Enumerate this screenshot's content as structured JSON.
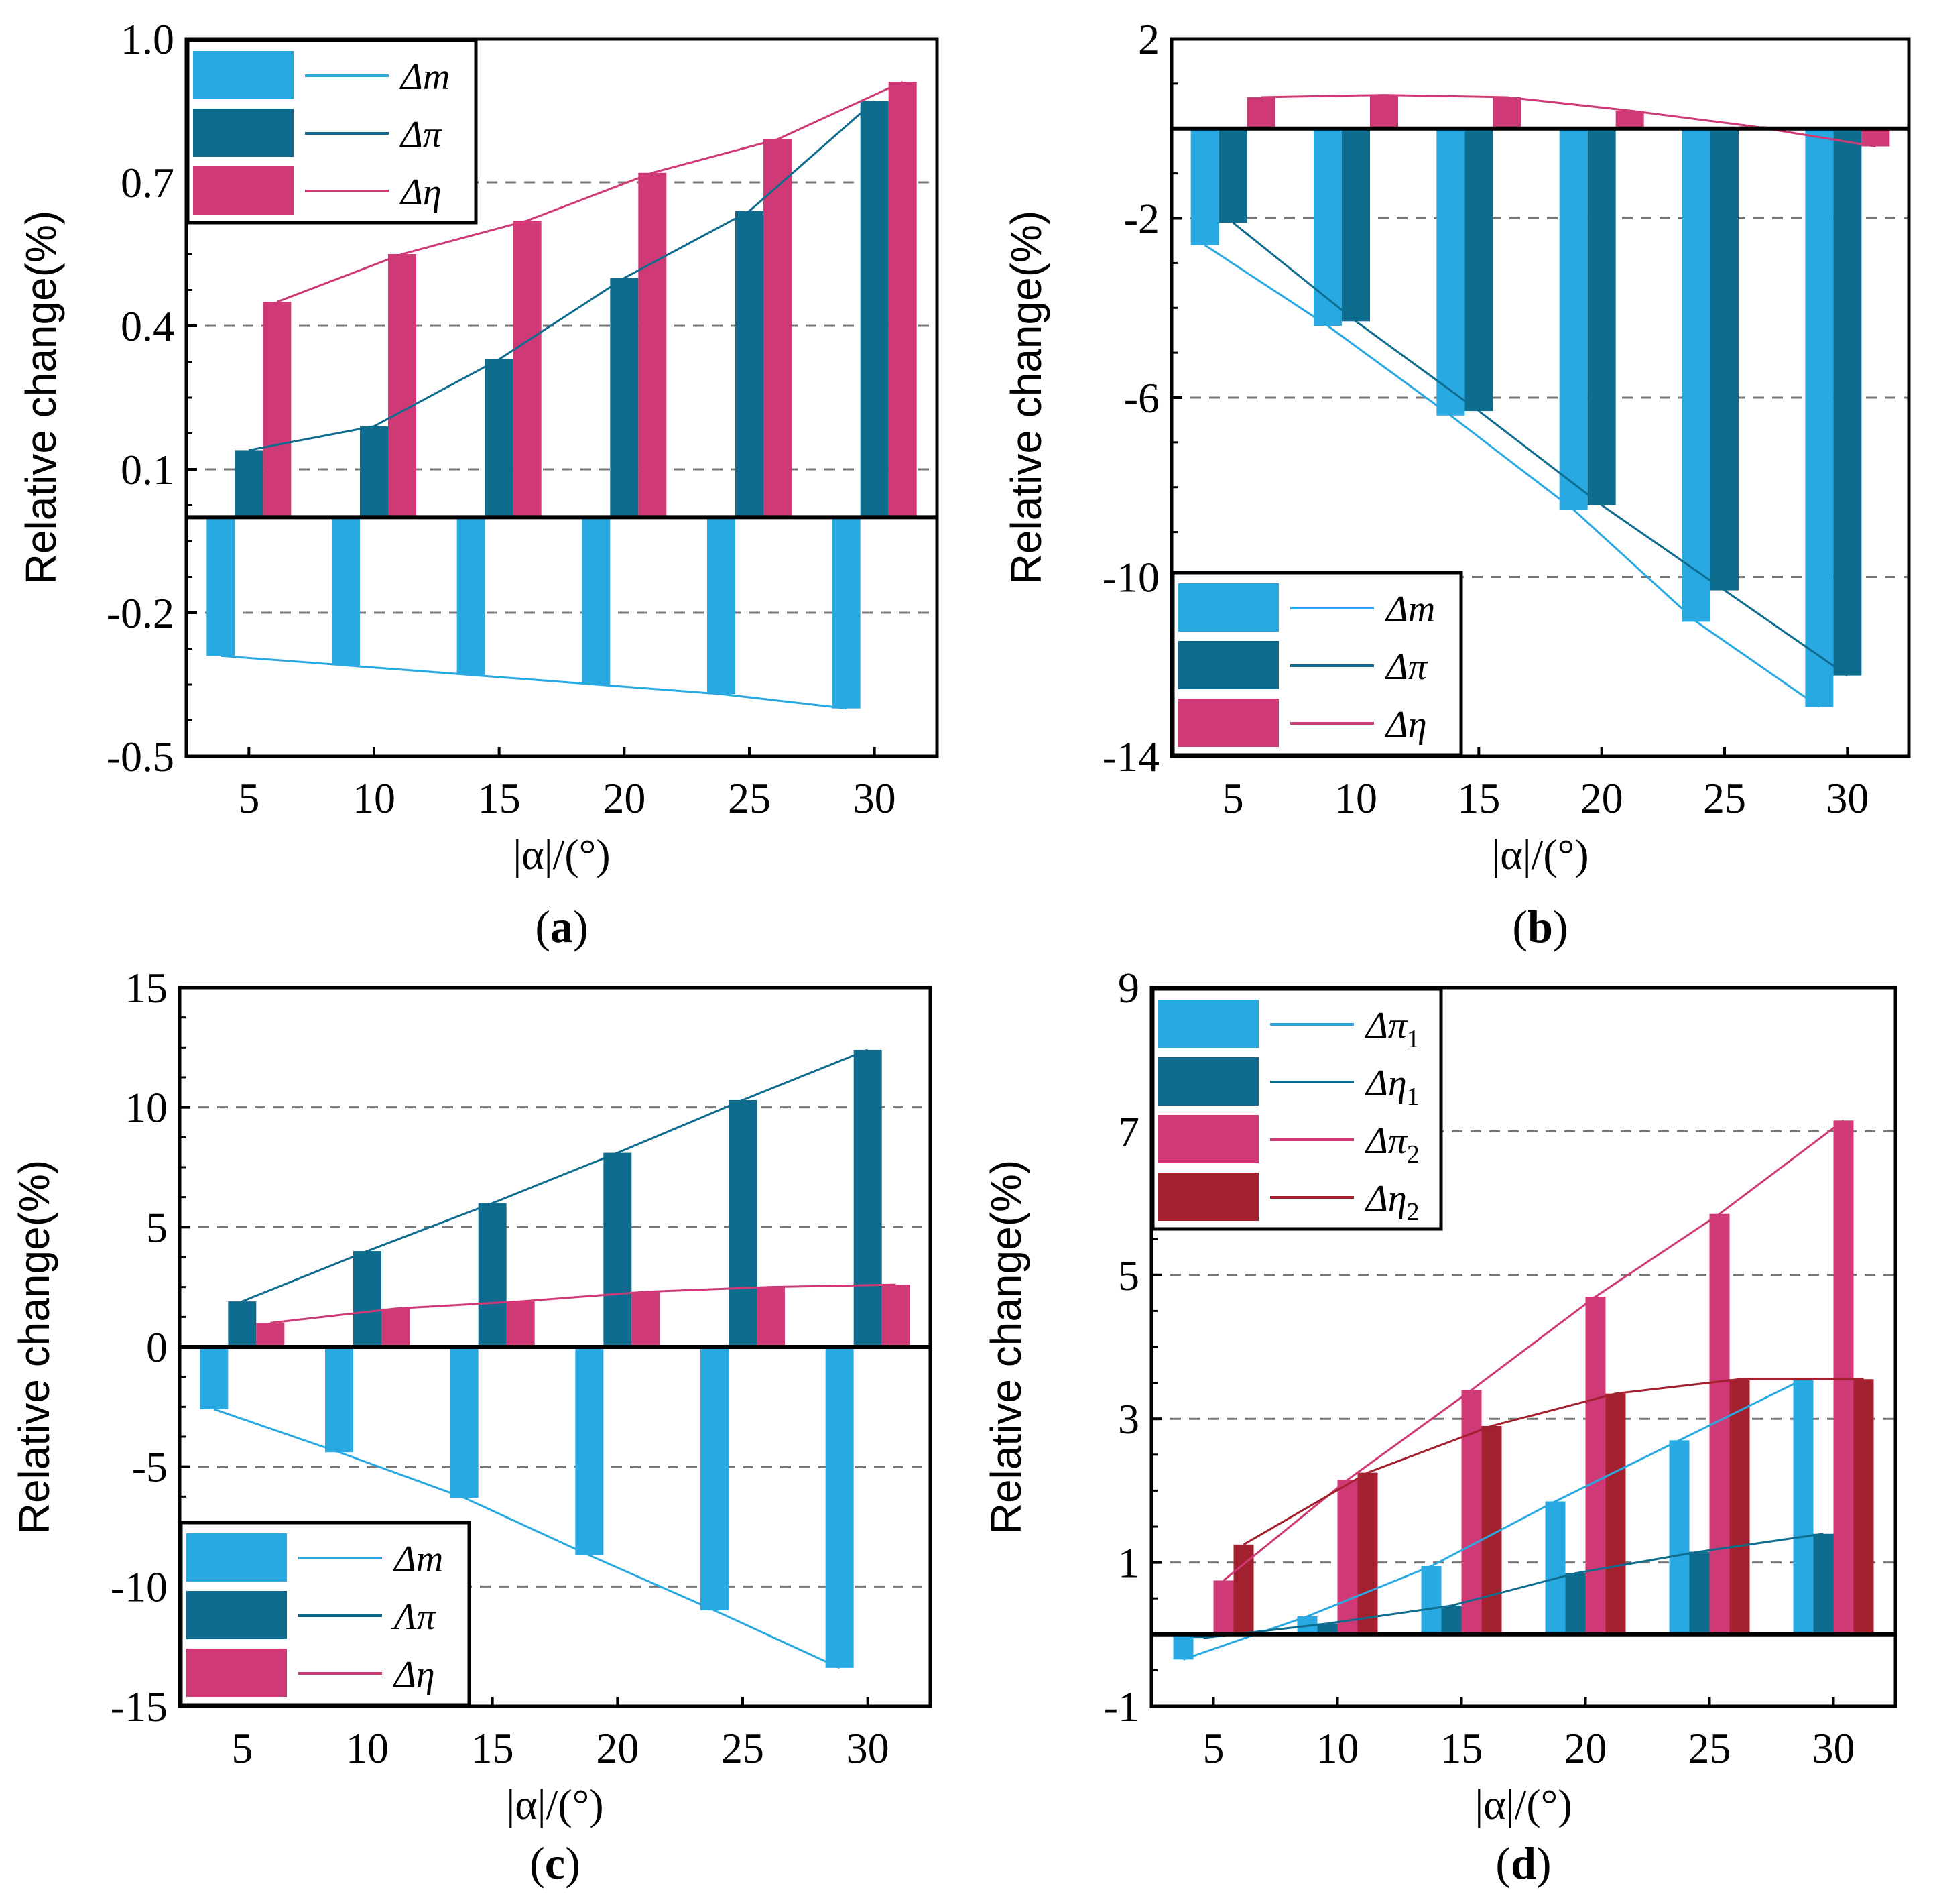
{
  "colors": {
    "light_blue": "#29a9e1",
    "teal": "#0e6c8f",
    "pink": "#cf3a76",
    "dark_red": "#a3202e"
  },
  "chart_data": [
    {
      "panel": "a",
      "type": "bar",
      "panel_label": "a",
      "xlabel": "|α|/(°)",
      "ylabel": "Relative change(%)",
      "categories": [
        "5",
        "10",
        "15",
        "20",
        "25",
        "30"
      ],
      "ylim": [
        -0.5,
        1.0
      ],
      "yticks": [
        "1.0",
        "0.7",
        "0.4",
        "0.1",
        "-0.2",
        "-0.5"
      ],
      "ytick_values": [
        1.0,
        0.7,
        0.4,
        0.1,
        -0.2,
        -0.5
      ],
      "grid_values": [
        0.7,
        0.4,
        0.1,
        -0.2
      ],
      "legend_position": "top-left",
      "series": [
        {
          "name": "Δm",
          "label_base": "Δm",
          "sub": "",
          "color": "light_blue",
          "values": [
            -0.29,
            -0.31,
            -0.33,
            -0.35,
            -0.37,
            -0.4
          ]
        },
        {
          "name": "Δπ",
          "label_base": "Δπ",
          "sub": "",
          "color": "teal",
          "values": [
            0.14,
            0.19,
            0.33,
            0.5,
            0.64,
            0.87
          ]
        },
        {
          "name": "Δη",
          "label_base": "Δη",
          "sub": "",
          "color": "pink",
          "values": [
            0.45,
            0.55,
            0.62,
            0.72,
            0.79,
            0.91
          ]
        }
      ]
    },
    {
      "panel": "b",
      "type": "bar",
      "panel_label": "b",
      "xlabel": "|α|/(°)",
      "ylabel": "Relative change(%)",
      "categories": [
        "5",
        "10",
        "15",
        "20",
        "25",
        "30"
      ],
      "ylim": [
        -14,
        2
      ],
      "yticks": [
        "2",
        "-2",
        "-6",
        "-10",
        "-14"
      ],
      "ytick_values": [
        2,
        -2,
        -6,
        -10,
        -14
      ],
      "grid_values": [
        -2,
        -6,
        -10
      ],
      "legend_position": "bottom-left",
      "series": [
        {
          "name": "Δm",
          "label_base": "Δm",
          "sub": "",
          "color": "light_blue",
          "values": [
            -2.6,
            -4.4,
            -6.4,
            -8.5,
            -11.0,
            -12.9
          ]
        },
        {
          "name": "Δπ",
          "label_base": "Δπ",
          "sub": "",
          "color": "teal",
          "values": [
            -2.1,
            -4.3,
            -6.3,
            -8.4,
            -10.3,
            -12.2
          ]
        },
        {
          "name": "Δη",
          "label_base": "Δη",
          "sub": "",
          "color": "pink",
          "values": [
            0.7,
            0.75,
            0.7,
            0.4,
            0.05,
            -0.4
          ]
        }
      ]
    },
    {
      "panel": "c",
      "type": "bar",
      "panel_label": "c",
      "xlabel": "|α|/(°)",
      "ylabel": "Relative change(%)",
      "categories": [
        "5",
        "10",
        "15",
        "20",
        "25",
        "30"
      ],
      "ylim": [
        -15,
        15
      ],
      "yticks": [
        "15",
        "10",
        "5",
        "0",
        "-5",
        "-10",
        "-15"
      ],
      "ytick_values": [
        15,
        10,
        5,
        0,
        -5,
        -10,
        -15
      ],
      "grid_values": [
        10,
        5,
        -5,
        -10
      ],
      "legend_position": "bottom-left",
      "series": [
        {
          "name": "Δm",
          "label_base": "Δm",
          "sub": "",
          "color": "light_blue",
          "values": [
            -2.6,
            -4.4,
            -6.3,
            -8.7,
            -11.0,
            -13.4
          ]
        },
        {
          "name": "Λπ",
          "label_base": "Λπ",
          "sub": "",
          "color": "teal",
          "values": [
            1.9,
            4.0,
            6.0,
            8.1,
            10.3,
            12.4
          ]
        },
        {
          "name": "Δη",
          "label_base": "Δη",
          "sub": "",
          "color": "pink",
          "values": [
            1.0,
            1.6,
            1.9,
            2.3,
            2.5,
            2.6
          ]
        }
      ]
    },
    {
      "panel": "d",
      "type": "bar",
      "panel_label": "d",
      "xlabel": "|α|/(°)",
      "ylabel": "Relative change(%)",
      "categories": [
        "5",
        "10",
        "15",
        "20",
        "25",
        "30"
      ],
      "ylim": [
        -1,
        9
      ],
      "yticks": [
        "9",
        "7",
        "5",
        "3",
        "1",
        "-1"
      ],
      "ytick_values": [
        9,
        7,
        5,
        3,
        1,
        -1
      ],
      "grid_values": [
        7,
        5,
        3,
        1
      ],
      "legend_position": "top-left",
      "series": [
        {
          "name": "Δπ1",
          "label_base": "Δπ",
          "sub": "1",
          "color": "light_blue",
          "values": [
            -0.35,
            0.25,
            0.95,
            1.85,
            2.7,
            3.55
          ]
        },
        {
          "name": "Δη1",
          "label_base": "Δη",
          "sub": "1",
          "color": "teal",
          "values": [
            -0.05,
            0.15,
            0.4,
            0.85,
            1.15,
            1.4
          ]
        },
        {
          "name": "Δπ2",
          "label_base": "Δπ",
          "sub": "2",
          "color": "pink",
          "values": [
            0.75,
            2.15,
            3.4,
            4.7,
            5.85,
            7.15
          ]
        },
        {
          "name": "Δη2",
          "label_base": "Δη",
          "sub": "2",
          "color": "dark_red",
          "values": [
            1.25,
            2.25,
            2.9,
            3.35,
            3.55,
            3.55
          ]
        }
      ]
    }
  ]
}
